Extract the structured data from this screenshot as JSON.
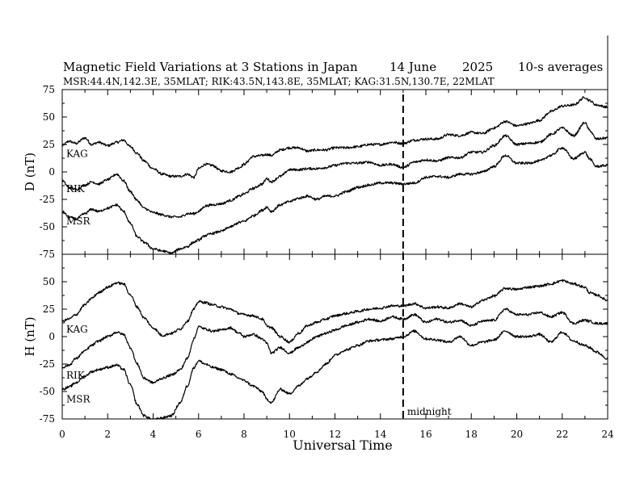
{
  "chart_data": {
    "type": "line",
    "title": "Magnetic Field Variations at 3 Stations in Japan",
    "date": "14 June",
    "year": "2025",
    "averaging": "10-s averages",
    "subtitle": "MSR:44.4N,142.3E, 35MLAT;  RIK:43.5N,143.8E, 35MLAT;  KAG:31.5N,130.7E, 22MLAT",
    "xlabel": "Universal Time",
    "xlim": [
      0,
      24
    ],
    "xticks": [
      "0",
      "2",
      "4",
      "6",
      "8",
      "10",
      "12",
      "14",
      "16",
      "18",
      "20",
      "22",
      "24"
    ],
    "annotation": {
      "x": 15,
      "label": "midnight",
      "style": "dashed vertical line"
    },
    "grid": false,
    "panels": [
      {
        "ylabel": "D (nT)",
        "ylim": [
          -75,
          75
        ],
        "yticks": [
          "75",
          "50",
          "25",
          "0",
          "-25",
          "-50",
          "-75"
        ],
        "series": [
          {
            "name": "KAG",
            "x": [
              0,
              0.3,
              0.6,
              1.0,
              1.3,
              1.6,
              2.0,
              2.4,
              2.7,
              3.0,
              3.3,
              3.6,
              4.0,
              4.4,
              4.8,
              5.2,
              5.5,
              5.8,
              6.0,
              6.3,
              6.6,
              7.0,
              7.4,
              7.8,
              8.0,
              8.4,
              8.8,
              9.0,
              9.2,
              9.6,
              10.0,
              10.4,
              10.8,
              11.2,
              11.6,
              12.0,
              12.5,
              13.0,
              13.5,
              14.0,
              14.5,
              15.0,
              15.5,
              16.0,
              16.5,
              17.0,
              17.5,
              18.0,
              18.5,
              19.0,
              19.5,
              20.0,
              20.5,
              21.0,
              21.5,
              22.0,
              22.5,
              23.0,
              23.2,
              23.5,
              24.0
            ],
            "values": [
              24,
              28,
              26,
              31,
              25,
              27,
              24,
              27,
              29,
              23,
              17,
              10,
              3,
              -2,
              -4,
              -4,
              -2,
              -5,
              3,
              7,
              6,
              1,
              0,
              4,
              7,
              14,
              15,
              16,
              15,
              20,
              22,
              22,
              19,
              20,
              20,
              22,
              22,
              23,
              25,
              25,
              27,
              26,
              29,
              30,
              30,
              34,
              33,
              36,
              35,
              40,
              46,
              42,
              44,
              47,
              55,
              60,
              61,
              68,
              65,
              61,
              59
            ]
          },
          {
            "name": "RIK",
            "x": [
              0,
              0.3,
              0.6,
              1.0,
              1.3,
              1.6,
              2.0,
              2.4,
              2.7,
              3.0,
              3.3,
              3.6,
              4.0,
              4.4,
              4.8,
              5.2,
              5.5,
              5.8,
              6.0,
              6.3,
              6.6,
              7.0,
              7.4,
              7.8,
              8.0,
              8.4,
              8.8,
              9.0,
              9.2,
              9.6,
              10.0,
              10.4,
              10.8,
              11.2,
              11.6,
              12.0,
              12.5,
              13.0,
              13.5,
              14.0,
              14.5,
              15.0,
              15.5,
              16.0,
              16.5,
              17.0,
              17.5,
              18.0,
              18.5,
              19.0,
              19.5,
              20.0,
              20.5,
              21.0,
              21.5,
              22.0,
              22.5,
              23.0,
              23.2,
              23.5,
              24.0
            ],
            "values": [
              -8,
              -14,
              -16,
              -12,
              -9,
              -11,
              -7,
              -2,
              -8,
              -18,
              -26,
              -33,
              -37,
              -39,
              -41,
              -41,
              -38,
              -38,
              -36,
              -31,
              -30,
              -29,
              -26,
              -22,
              -20,
              -15,
              -11,
              -6,
              -9,
              -4,
              2,
              2,
              3,
              3,
              4,
              6,
              8,
              8,
              9,
              6,
              7,
              4,
              9,
              11,
              10,
              13,
              13,
              18,
              18,
              24,
              33,
              25,
              26,
              27,
              34,
              40,
              33,
              45,
              38,
              30,
              31
            ]
          },
          {
            "name": "MSR",
            "x": [
              0,
              0.3,
              0.6,
              1.0,
              1.3,
              1.6,
              2.0,
              2.4,
              2.7,
              3.0,
              3.3,
              3.6,
              4.0,
              4.4,
              4.8,
              5.2,
              5.5,
              5.8,
              6.0,
              6.3,
              6.6,
              7.0,
              7.4,
              7.8,
              8.0,
              8.4,
              8.8,
              9.0,
              9.2,
              9.6,
              10.0,
              10.4,
              10.8,
              11.2,
              11.6,
              12.0,
              12.5,
              13.0,
              13.5,
              14.0,
              14.5,
              15.0,
              15.5,
              16.0,
              16.5,
              17.0,
              17.5,
              18.0,
              18.5,
              19.0,
              19.5,
              20.0,
              20.5,
              21.0,
              21.5,
              22.0,
              22.5,
              23.0,
              23.2,
              23.5,
              24.0
            ],
            "values": [
              -36,
              -41,
              -43,
              -38,
              -34,
              -36,
              -33,
              -30,
              -36,
              -47,
              -59,
              -64,
              -70,
              -72,
              -74,
              -70,
              -68,
              -64,
              -62,
              -58,
              -56,
              -54,
              -50,
              -46,
              -45,
              -40,
              -35,
              -32,
              -36,
              -30,
              -27,
              -24,
              -22,
              -25,
              -22,
              -22,
              -18,
              -14,
              -12,
              -10,
              -10,
              -11,
              -10,
              -5,
              -4,
              -5,
              -2,
              -2,
              0,
              5,
              15,
              8,
              8,
              10,
              15,
              22,
              12,
              18,
              12,
              5,
              6
            ]
          }
        ]
      },
      {
        "ylabel": "H (nT)",
        "ylim": [
          -75,
          75
        ],
        "yticks": [
          "75",
          "50",
          "25",
          "0",
          "-25",
          "-50",
          "-75"
        ],
        "series": [
          {
            "name": "KAG",
            "x": [
              0,
              0.3,
              0.6,
              1.0,
              1.3,
              1.6,
              2.0,
              2.4,
              2.7,
              3.0,
              3.3,
              3.6,
              4.0,
              4.4,
              4.8,
              5.2,
              5.5,
              5.8,
              6.0,
              6.3,
              6.6,
              7.0,
              7.4,
              7.8,
              8.0,
              8.4,
              8.8,
              9.0,
              9.2,
              9.6,
              10.0,
              10.4,
              10.8,
              11.2,
              11.6,
              12.0,
              12.5,
              13.0,
              13.5,
              14.0,
              14.5,
              15.0,
              15.5,
              16.0,
              16.5,
              17.0,
              17.5,
              18.0,
              18.5,
              19.0,
              19.5,
              20.0,
              20.5,
              21.0,
              21.5,
              22.0,
              22.5,
              23.0,
              23.2,
              23.5,
              24.0
            ],
            "values": [
              14,
              16,
              20,
              29,
              35,
              40,
              45,
              49,
              48,
              38,
              27,
              17,
              8,
              1,
              3,
              7,
              14,
              25,
              32,
              31,
              29,
              27,
              25,
              21,
              20,
              19,
              16,
              10,
              8,
              0,
              -5,
              3,
              10,
              13,
              16,
              19,
              21,
              23,
              25,
              26,
              28,
              28,
              30,
              26,
              27,
              26,
              30,
              27,
              33,
              37,
              44,
              43,
              45,
              46,
              48,
              51,
              48,
              45,
              40,
              38,
              33
            ]
          },
          {
            "name": "RIK",
            "x": [
              0,
              0.3,
              0.6,
              1.0,
              1.3,
              1.6,
              2.0,
              2.4,
              2.7,
              3.0,
              3.3,
              3.6,
              4.0,
              4.4,
              4.8,
              5.2,
              5.5,
              5.8,
              6.0,
              6.3,
              6.6,
              7.0,
              7.4,
              7.8,
              8.0,
              8.4,
              8.8,
              9.0,
              9.2,
              9.6,
              10.0,
              10.4,
              10.8,
              11.2,
              11.6,
              12.0,
              12.5,
              13.0,
              13.5,
              14.0,
              14.5,
              15.0,
              15.5,
              16.0,
              16.5,
              17.0,
              17.5,
              18.0,
              18.5,
              19.0,
              19.5,
              20.0,
              20.5,
              21.0,
              21.5,
              22.0,
              22.5,
              23.0,
              23.2,
              23.5,
              24.0
            ],
            "values": [
              -28,
              -26,
              -20,
              -13,
              -8,
              -4,
              0,
              4,
              2,
              -10,
              -25,
              -38,
              -42,
              -38,
              -35,
              -30,
              -20,
              -2,
              9,
              7,
              5,
              6,
              8,
              3,
              0,
              2,
              -2,
              -6,
              -15,
              -10,
              -15,
              -10,
              -5,
              0,
              3,
              6,
              10,
              13,
              16,
              14,
              18,
              16,
              20,
              13,
              16,
              13,
              15,
              10,
              14,
              15,
              25,
              20,
              20,
              22,
              18,
              22,
              12,
              15,
              14,
              12,
              12
            ]
          },
          {
            "name": "MSR",
            "x": [
              0,
              0.3,
              0.6,
              1.0,
              1.3,
              1.6,
              2.0,
              2.4,
              2.7,
              3.0,
              3.3,
              3.6,
              4.0,
              4.4,
              4.8,
              5.2,
              5.5,
              5.8,
              6.0,
              6.3,
              6.6,
              7.0,
              7.4,
              7.8,
              8.0,
              8.4,
              8.8,
              9.0,
              9.2,
              9.6,
              10.0,
              10.4,
              10.8,
              11.2,
              11.6,
              12.0,
              12.5,
              13.0,
              13.5,
              14.0,
              14.5,
              15.0,
              15.5,
              16.0,
              16.5,
              17.0,
              17.5,
              18.0,
              18.5,
              19.0,
              19.5,
              20.0,
              20.5,
              21.0,
              21.5,
              22.0,
              22.5,
              23.0,
              23.2,
              23.5,
              24.0
            ],
            "values": [
              -48,
              -46,
              -42,
              -36,
              -32,
              -30,
              -28,
              -26,
              -30,
              -44,
              -62,
              -72,
              -76,
              -74,
              -72,
              -60,
              -45,
              -28,
              -22,
              -25,
              -28,
              -30,
              -34,
              -38,
              -40,
              -45,
              -50,
              -57,
              -60,
              -48,
              -52,
              -45,
              -38,
              -32,
              -25,
              -17,
              -12,
              -8,
              -4,
              -3,
              -2,
              0,
              5,
              -2,
              -3,
              -5,
              0,
              -8,
              -5,
              -3,
              5,
              0,
              0,
              2,
              -5,
              4,
              -4,
              -8,
              -10,
              -14,
              -20
            ]
          }
        ]
      }
    ]
  }
}
